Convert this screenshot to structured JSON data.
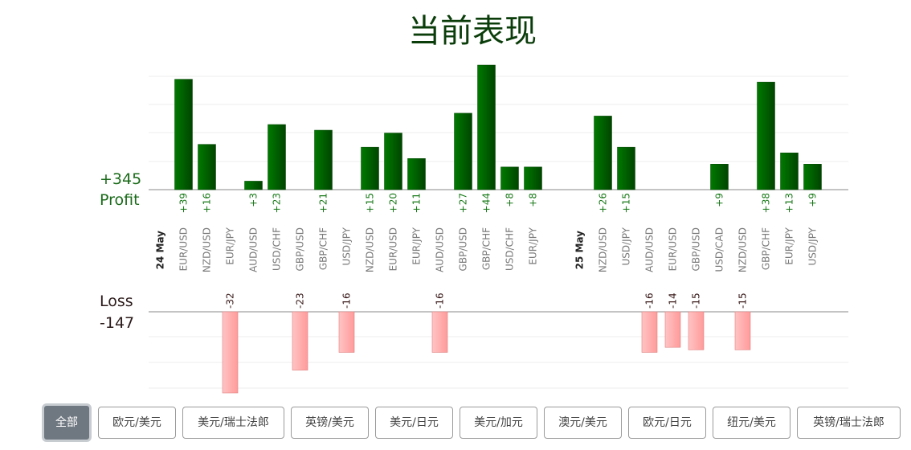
{
  "title": "当前表现",
  "summary": {
    "profit_total": "+345",
    "profit_label": "Profit",
    "loss_label": "Loss",
    "loss_total": "-147"
  },
  "colors": {
    "profit_bar": "#006600",
    "loss_bar": "#ffaaaa",
    "profit_text": "#1a6b1a",
    "loss_text": "#2b1a1a"
  },
  "chart_data": {
    "type": "bar",
    "groups": [
      {
        "label": "24 May",
        "items": [
          {
            "pair": "EUR/USD",
            "value": 39
          },
          {
            "pair": "NZD/USD",
            "value": 16
          },
          {
            "pair": "EUR/JPY",
            "value": -32
          },
          {
            "pair": "AUD/USD",
            "value": 3
          },
          {
            "pair": "USD/CHF",
            "value": 23
          },
          {
            "pair": "GBP/USD",
            "value": -23
          },
          {
            "pair": "GBP/CHF",
            "value": 21
          },
          {
            "pair": "USD/JPY",
            "value": -16
          },
          {
            "pair": "NZD/USD",
            "value": 15
          },
          {
            "pair": "EUR/USD",
            "value": 20
          },
          {
            "pair": "EUR/JPY",
            "value": 11
          },
          {
            "pair": "AUD/USD",
            "value": -16
          },
          {
            "pair": "GBP/USD",
            "value": 27
          },
          {
            "pair": "GBP/CHF",
            "value": 44
          },
          {
            "pair": "USD/CHF",
            "value": 8
          },
          {
            "pair": "EUR/JPY",
            "value": 8
          }
        ]
      },
      {
        "label": "25 May",
        "items": [
          {
            "pair": "NZD/USD",
            "value": 26
          },
          {
            "pair": "USD/JPY",
            "value": 15
          },
          {
            "pair": "AUD/USD",
            "value": -16
          },
          {
            "pair": "EUR/USD",
            "value": -14
          },
          {
            "pair": "GBP/USD",
            "value": -15
          },
          {
            "pair": "USD/CAD",
            "value": 9
          },
          {
            "pair": "NZD/USD",
            "value": -15
          },
          {
            "pair": "GBP/CHF",
            "value": 38
          },
          {
            "pair": "EUR/JPY",
            "value": 13
          },
          {
            "pair": "USD/JPY",
            "value": 9
          }
        ]
      }
    ],
    "profit_ylim": [
      0,
      44
    ],
    "loss_ylim": [
      0,
      32
    ],
    "grid": true
  },
  "filters": {
    "active_index": 0,
    "buttons": [
      "全部",
      "欧元/美元",
      "美元/瑞士法郎",
      "英镑/美元",
      "美元/日元",
      "美元/加元",
      "澳元/美元",
      "欧元/日元",
      "纽元/美元",
      "英镑/瑞士法郎"
    ]
  }
}
